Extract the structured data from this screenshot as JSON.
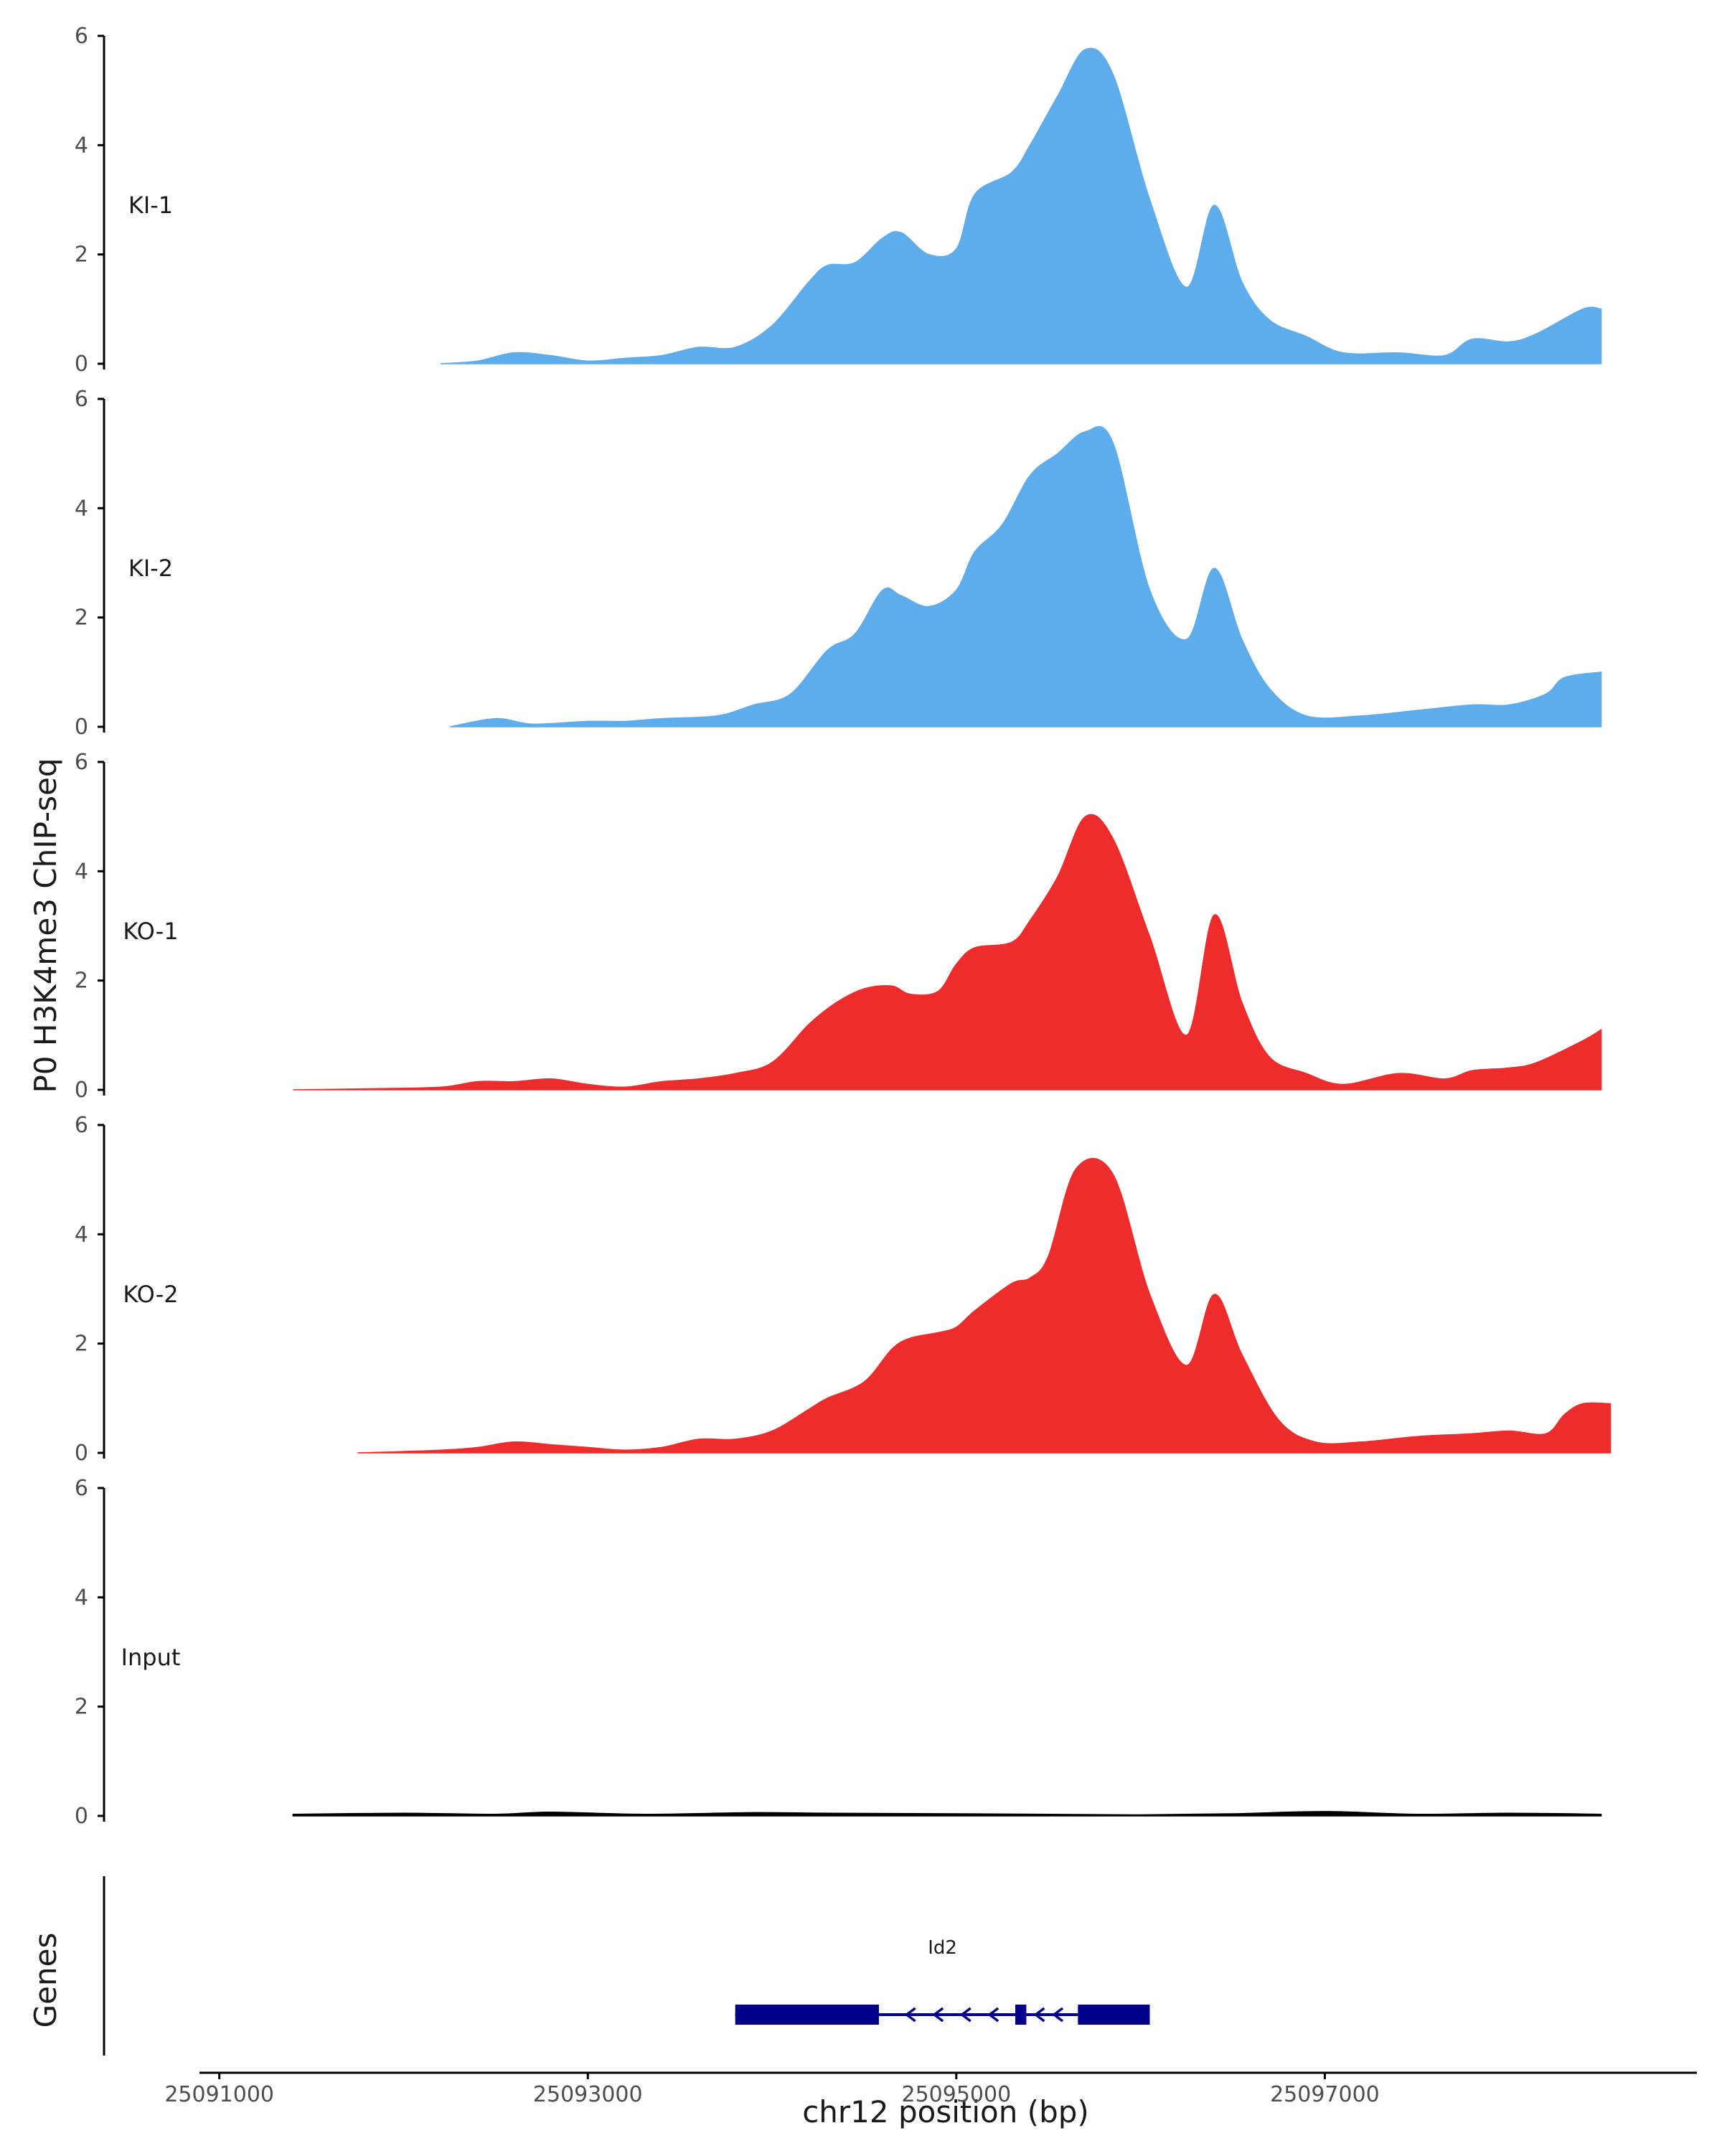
{
  "chart_data": {
    "type": "area",
    "ylabel": "P0 H3K4me3 ChIP-seq",
    "xlabel": "chr12 position (bp)",
    "genes_label": "Genes",
    "xlim": [
      25090900,
      25099000
    ],
    "ylim": [
      0,
      6
    ],
    "y_ticks": [
      0,
      2,
      4,
      6
    ],
    "x_ticks": [
      {
        "value": 25091000,
        "label": "25091000"
      },
      {
        "value": 25093000,
        "label": "25093000"
      },
      {
        "value": 25095000,
        "label": "25095000"
      },
      {
        "value": 25097000,
        "label": "25097000"
      }
    ],
    "colors": {
      "KI": "#5DADEC",
      "KO": "#EE2C2C",
      "Input": "#000000",
      "gene": "#00008B",
      "axis": "#000000"
    },
    "tracks": [
      {
        "name": "KI-1",
        "color": "#5DADEC",
        "x": [
          25092200,
          25092400,
          25092600,
          25092800,
          25093000,
          25093200,
          25093400,
          25093600,
          25093800,
          25094000,
          25094200,
          25094300,
          25094450,
          25094600,
          25094700,
          25094850,
          25095000,
          25095100,
          25095300,
          25095400,
          25095550,
          25095700,
          25095850,
          25096050,
          25096250,
          25096400,
          25096550,
          25096700,
          25096900,
          25097100,
          25097400,
          25097650,
          25097800,
          25098000,
          25098150,
          25098400,
          25098500
        ],
        "y": [
          0.0,
          0.05,
          0.2,
          0.15,
          0.05,
          0.1,
          0.15,
          0.3,
          0.3,
          0.7,
          1.5,
          1.8,
          1.85,
          2.3,
          2.4,
          2.0,
          2.1,
          3.1,
          3.5,
          4.0,
          4.9,
          5.75,
          5.3,
          3.0,
          1.4,
          2.9,
          1.5,
          0.8,
          0.5,
          0.2,
          0.2,
          0.15,
          0.45,
          0.4,
          0.55,
          1.0,
          1.0
        ]
      },
      {
        "name": "KI-2",
        "color": "#5DADEC",
        "x": [
          25092250,
          25092500,
          25092700,
          25093000,
          25093200,
          25093400,
          25093700,
          25093900,
          25094100,
          25094300,
          25094450,
          25094600,
          25094700,
          25094850,
          25095000,
          25095100,
          25095250,
          25095400,
          25095550,
          25095700,
          25095850,
          25096050,
          25096250,
          25096400,
          25096550,
          25096700,
          25096900,
          25097200,
          25097500,
          25097800,
          25098000,
          25098200,
          25098300,
          25098500
        ],
        "y": [
          0.0,
          0.15,
          0.05,
          0.1,
          0.1,
          0.15,
          0.2,
          0.4,
          0.6,
          1.4,
          1.7,
          2.5,
          2.4,
          2.2,
          2.5,
          3.2,
          3.7,
          4.6,
          5.0,
          5.4,
          5.2,
          2.5,
          1.6,
          2.9,
          1.6,
          0.7,
          0.2,
          0.2,
          0.3,
          0.4,
          0.4,
          0.6,
          0.9,
          1.0
        ]
      },
      {
        "name": "KO-1",
        "color": "#EE2C2C",
        "x": [
          25091400,
          25091800,
          25092200,
          25092400,
          25092600,
          25092800,
          25093000,
          25093200,
          25093400,
          25093600,
          25093800,
          25094000,
          25094200,
          25094350,
          25094500,
          25094650,
          25094750,
          25094900,
          25095000,
          25095100,
          25095300,
          25095400,
          25095550,
          25095700,
          25095850,
          25096050,
          25096250,
          25096400,
          25096550,
          25096700,
          25096900,
          25097100,
          25097400,
          25097650,
          25097800,
          25098000,
          25098150,
          25098400,
          25098500
        ],
        "y": [
          0.0,
          0.02,
          0.05,
          0.15,
          0.15,
          0.2,
          0.1,
          0.05,
          0.15,
          0.2,
          0.3,
          0.5,
          1.2,
          1.6,
          1.85,
          1.9,
          1.75,
          1.8,
          2.3,
          2.6,
          2.7,
          3.1,
          3.9,
          5.0,
          4.6,
          2.8,
          1.0,
          3.2,
          1.6,
          0.6,
          0.3,
          0.1,
          0.3,
          0.2,
          0.35,
          0.4,
          0.5,
          0.9,
          1.1
        ]
      },
      {
        "name": "KO-2",
        "color": "#EE2C2C",
        "x": [
          25091750,
          25092200,
          25092400,
          25092600,
          25092800,
          25093000,
          25093200,
          25093400,
          25093600,
          25093800,
          25094000,
          25094200,
          25094300,
          25094500,
          25094650,
          25094750,
          25094900,
          25095000,
          25095100,
          25095300,
          25095400,
          25095500,
          25095650,
          25095850,
          25096050,
          25096250,
          25096400,
          25096550,
          25096750,
          25096950,
          25097200,
          25097500,
          25097800,
          25098000,
          25098200,
          25098300,
          25098400,
          25098550
        ],
        "y": [
          0.0,
          0.05,
          0.1,
          0.2,
          0.15,
          0.1,
          0.05,
          0.1,
          0.25,
          0.25,
          0.4,
          0.8,
          1.0,
          1.3,
          1.9,
          2.1,
          2.2,
          2.3,
          2.6,
          3.1,
          3.2,
          3.6,
          5.2,
          5.1,
          2.9,
          1.6,
          2.9,
          1.8,
          0.6,
          0.2,
          0.2,
          0.3,
          0.35,
          0.4,
          0.35,
          0.7,
          0.9,
          0.9
        ]
      },
      {
        "name": "Input",
        "color": "#000000",
        "x": [
          25091400,
          25092000,
          25092500,
          25092800,
          25093300,
          25093900,
          25094300,
          25095000,
          25095500,
          25096000,
          25096500,
          25097000,
          25097500,
          25098000,
          25098500
        ],
        "y": [
          0.03,
          0.05,
          0.03,
          0.07,
          0.03,
          0.06,
          0.05,
          0.04,
          0.03,
          0.02,
          0.04,
          0.08,
          0.03,
          0.05,
          0.03
        ]
      }
    ],
    "gene": {
      "name": "Id2",
      "start": 25093800,
      "end": 25096050,
      "strand": "-",
      "exons": [
        [
          25093800,
          25094580
        ],
        [
          25095320,
          25095380
        ],
        [
          25095660,
          25096050
        ]
      ],
      "arrows": [
        25094750,
        25094900,
        25095050,
        25095200,
        25095450,
        25095550
      ]
    }
  }
}
